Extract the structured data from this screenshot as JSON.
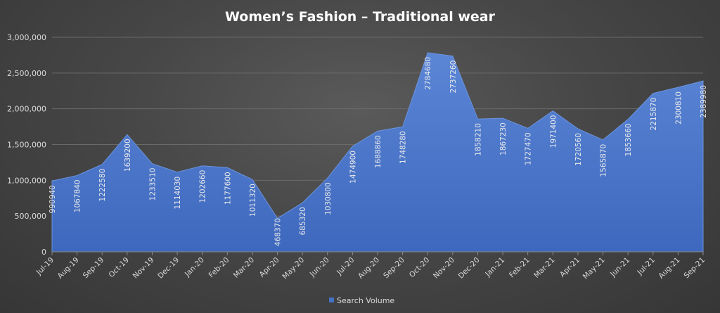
{
  "chart_data": {
    "type": "area",
    "title": "Women’s Fashion – Traditional wear",
    "xlabel": "",
    "ylabel": "",
    "ylim": [
      0,
      3000000
    ],
    "y_ticks": [
      "0",
      "500,000",
      "1,000,000",
      "1,500,000",
      "2,000,000",
      "2,500,000",
      "3,000,000"
    ],
    "grid": "horizontal",
    "legend_position": "bottom",
    "categories": [
      "Jul-19",
      "Aug-19",
      "Sep-19",
      "Oct-19",
      "Nov-19",
      "Dec-19",
      "Jan-20",
      "Feb-20",
      "Mar-20",
      "Apr-20",
      "May-20",
      "Jun-20",
      "Jul-20",
      "Aug-20",
      "Sep-20",
      "Oct-20",
      "Nov-20",
      "Dec-20",
      "Jan-21",
      "Feb-21",
      "Mar-21",
      "Apr-21",
      "May-21",
      "Jun-21",
      "Jul-21",
      "Aug-21",
      "Sep-21"
    ],
    "series": [
      {
        "name": "Search Volume",
        "color": "#4472c4",
        "values": [
          990940,
          1067840,
          1222580,
          1639200,
          1233510,
          1114030,
          1202660,
          1177600,
          1011320,
          468370,
          685320,
          1030800,
          1474900,
          1688860,
          1748280,
          2784680,
          2737260,
          1858210,
          1867230,
          1727470,
          1971400,
          1720560,
          1565870,
          1853660,
          2215870,
          2300810,
          2389980
        ]
      }
    ]
  }
}
